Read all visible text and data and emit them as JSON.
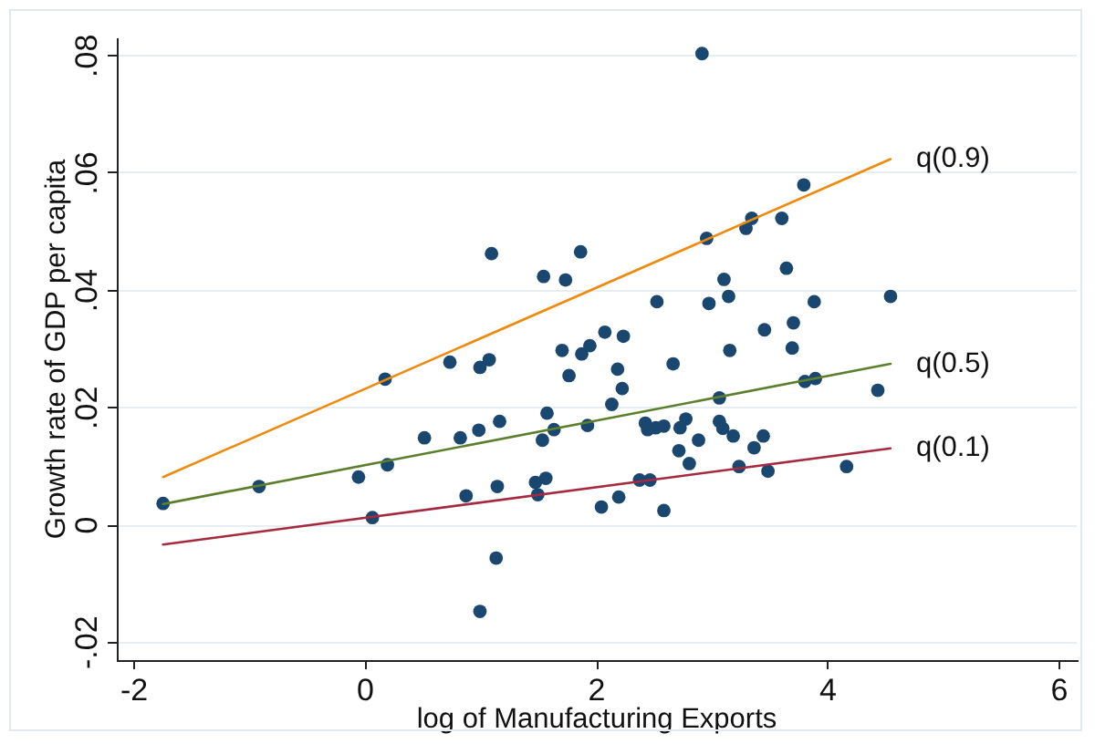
{
  "chart_data": {
    "type": "scatter",
    "xlabel": "log of Manufacturing Exports",
    "ylabel": "Growth rate of GDP per capita",
    "xlim": [
      -2.15,
      6.15
    ],
    "ylim": [
      -0.023,
      0.083
    ],
    "xticks": [
      -2,
      0,
      2,
      4,
      6
    ],
    "yticks": [
      {
        "value": -0.02,
        "label": "-.02"
      },
      0,
      {
        "value": 0.02,
        "label": ".02"
      },
      {
        "value": 0.04,
        "label": ".04"
      },
      {
        "value": 0.06,
        "label": ".06"
      },
      {
        "value": 0.08,
        "label": ".08"
      }
    ],
    "grid": "y",
    "marker": "circle",
    "series": [
      {
        "color": "#1a476f",
        "x": [
          -1.75,
          -0.92,
          -0.06,
          0.06,
          0.19,
          0.17,
          0.51,
          0.73,
          0.82,
          0.87,
          0.99,
          1.07,
          0.98,
          1.16,
          1.14,
          1.13,
          0.99,
          1.47,
          1.56,
          1.49,
          1.53,
          1.57,
          1.09,
          1.54,
          2.91,
          3.79,
          3.34,
          3.29,
          3.6,
          2.95,
          1.86,
          1.73,
          3.64,
          3.1,
          3.14,
          2.52,
          2.97,
          3.88,
          4.54,
          3.7,
          3.45,
          2.07,
          2.23,
          1.7,
          1.87,
          1.94,
          3.15,
          3.69,
          2.18,
          2.66,
          1.76,
          2.22,
          2.13,
          1.63,
          1.92,
          2.42,
          2.44,
          2.51,
          2.58,
          2.72,
          2.77,
          2.88,
          2.71,
          2.8,
          3.06,
          3.06,
          3.09,
          3.18,
          3.23,
          3.36,
          3.44,
          3.48,
          3.8,
          3.89,
          4.43,
          4.16,
          2.37,
          2.46,
          2.04,
          2.19,
          2.58
        ],
        "values": [
          0.0037,
          0.0066,
          0.0082,
          0.0013,
          0.0103,
          0.0249,
          0.0149,
          0.0278,
          0.0149,
          0.005,
          0.0269,
          0.0282,
          0.0162,
          0.0177,
          0.0066,
          -0.0056,
          -0.0147,
          0.0073,
          0.008,
          0.0052,
          0.0145,
          0.0191,
          0.0463,
          0.0424,
          0.0804,
          0.058,
          0.0523,
          0.0506,
          0.0523,
          0.0489,
          0.0466,
          0.0418,
          0.0438,
          0.0419,
          0.039,
          0.0381,
          0.0378,
          0.0381,
          0.039,
          0.0345,
          0.0333,
          0.0329,
          0.0322,
          0.0298,
          0.0292,
          0.0306,
          0.0298,
          0.0302,
          0.0266,
          0.0275,
          0.0255,
          0.0233,
          0.0206,
          0.0163,
          0.017,
          0.0174,
          0.0163,
          0.0166,
          0.0169,
          0.0166,
          0.0181,
          0.0145,
          0.0127,
          0.0105,
          0.0217,
          0.0177,
          0.0165,
          0.0152,
          0.01,
          0.0132,
          0.0152,
          0.0092,
          0.0245,
          0.025,
          0.023,
          0.01,
          0.0077,
          0.0077,
          0.0031,
          0.0048,
          0.0025
        ]
      },
      {
        "type": "line",
        "name": "q(0.9)",
        "color": "#ee8a0e",
        "marker": "none",
        "x": [
          -1.75,
          4.54
        ],
        "values": [
          0.0082,
          0.0624
        ]
      },
      {
        "type": "line",
        "name": "q(0.5)",
        "color": "#5b7f2c",
        "marker": "none",
        "x": [
          -1.75,
          4.54
        ],
        "values": [
          0.0036,
          0.0275
        ]
      },
      {
        "type": "line",
        "name": "q(0.1)",
        "color": "#a5293f",
        "marker": "none",
        "x": [
          -1.75,
          4.54
        ],
        "values": [
          -0.0033,
          0.0131
        ]
      }
    ]
  }
}
